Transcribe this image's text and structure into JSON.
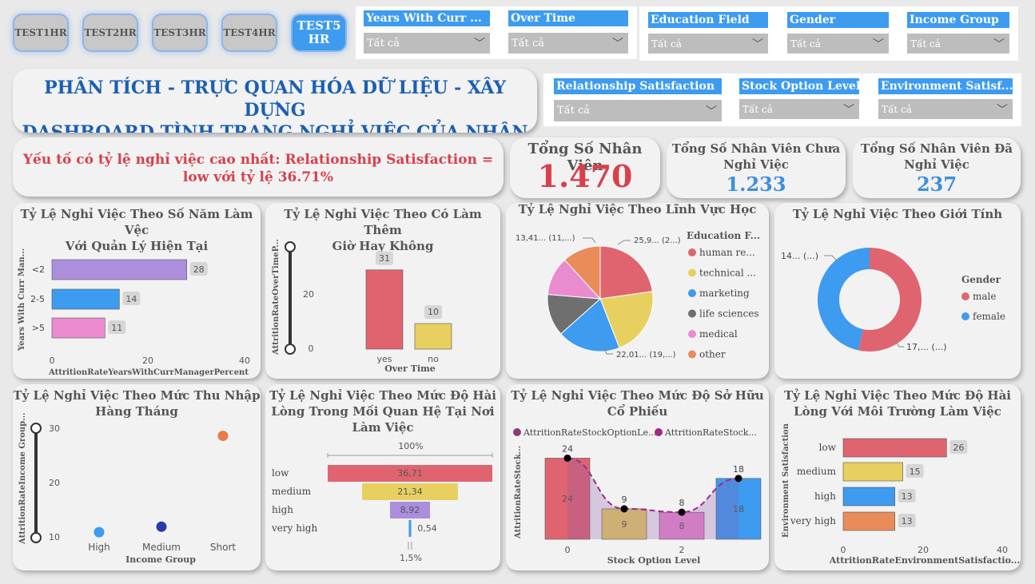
{
  "nav": {
    "tabs": [
      {
        "label": "TEST1HR"
      },
      {
        "label": "TEST2HR"
      },
      {
        "label": "TEST3HR"
      },
      {
        "label": "TEST4HR"
      },
      {
        "label": "TEST5\nHR",
        "active": true
      }
    ]
  },
  "slicers": {
    "years_with_curr": {
      "label": "Years With Curr ...",
      "value": "Tất cả"
    },
    "over_time": {
      "label": "Over Time",
      "value": "Tất cả"
    },
    "education_field": {
      "label": "Education Field",
      "value": "Tất cả"
    },
    "gender": {
      "label": "Gender",
      "value": "Tất cả"
    },
    "income_group": {
      "label": "Income Group",
      "value": "Tất cả"
    },
    "relationship_satisfaction": {
      "label": "Relationship Satisfaction",
      "value": "Tất cả"
    },
    "stock_option_level": {
      "label": "Stock Option Level",
      "value": "Tất cả"
    },
    "environment_satisfaction": {
      "label": "Environment Satisf...",
      "value": "Tất cả"
    }
  },
  "header": {
    "title_line1": "PHÂN TÍCH - TRỰC QUAN HÓA DỮ LIỆU - XÂY DỰNG",
    "title_line2": "DASHBOARD TÌNH TRẠNG NGHỈ VIỆC CỦA NHÂN VIÊN"
  },
  "insight": {
    "line1": "Yếu tố có tỷ lệ nghỉ việc cao nhất: Relationship Satisfaction =",
    "line2": "low với tỷ lệ 36.71%"
  },
  "kpis": {
    "total": {
      "label": "Tổng Số Nhân Viên",
      "value": "1.470"
    },
    "not_left": {
      "label_line1": "Tổng Số Nhân Viên Chưa",
      "label_line2": "Nghỉ Việc",
      "value": "1.233"
    },
    "left": {
      "label_line1": "Tổng Số Nhân Viên Đã",
      "label_line2": "Nghỉ Việc",
      "value": "237"
    }
  },
  "colors": {
    "accent": "#3d9bf0",
    "red": "#e06470",
    "yellow": "#e8d060",
    "blue": "#3d9bf0",
    "purple": "#ab8fdc",
    "pink": "#ea8bcf",
    "orange": "#ea8b5a",
    "gray": "#6f6f6f"
  },
  "charts": {
    "years_mgr": {
      "title_line1": "Tỷ Lệ Nghỉ Việc Theo Số Năm Làm Vệc",
      "title_line2": "Với Quản Lý Hiện Tại",
      "ylabel": "Years With Curr Man...",
      "xlabel": "AttritionRateYearsWithCurrManagerPercent",
      "xticks": [
        "0",
        "20",
        "40"
      ]
    },
    "overtime": {
      "title_line1": "Tỷ Lệ Nghỉ Việc Theo Có Làm Thêm",
      "title_line2": "Giờ Hay Không",
      "ylabel": "AttritionRateOverTimeP...",
      "xlabel": "Over Time",
      "yticks": [
        "20",
        "0"
      ]
    },
    "education": {
      "title": "Tỷ Lệ Nghỉ Việc Theo Lĩnh Vực Học",
      "legend_title": "Education F...",
      "labels": {
        "top_left": "13,41... (11,...)",
        "top_right": "25,9... (2...)",
        "bottom": "22,01... (19,...)"
      }
    },
    "gender": {
      "title": "Tỷ Lệ Nghỉ Việc Theo Giới Tính",
      "legend_title": "Gender",
      "labels": {
        "female": "14... (...)",
        "male": "17,... (...)"
      }
    },
    "income": {
      "title_line1": "Tỷ Lệ Nghỉ Việc Theo Mức Thu Nhập",
      "title_line2": "Hàng Tháng",
      "ylabel": "AttritionRateIncome Group...",
      "xlabel": "Income Group",
      "yticks": [
        "30",
        "20",
        "10"
      ]
    },
    "relationship": {
      "title_line1": "Tỷ Lệ Nghỉ Việc Theo Mức Độ Hài",
      "title_line2": "Lòng Trong Mối Quan Hệ Tại Nơi",
      "title_line3": "Làm Việc",
      "top_label": "100%",
      "bottom_label": "1,5%"
    },
    "stock": {
      "title_line1": "Tỷ Lệ Nghỉ Việc Theo Mức Độ Sở Hữu",
      "title_line2": "Cổ Phiếu",
      "legend1": "AttritionRateStockOptionLe...",
      "legend2": "AttritionRateStock...",
      "ylabel": "AttritionRateStock...",
      "xlabel": "Stock Option Level",
      "xticks": [
        "0",
        "2"
      ]
    },
    "environment": {
      "title_line1": "Tỷ Lệ Nghỉ Việc Theo Mức Độ Hài",
      "title_line2": "Lòng Với Môi Trường Làm Việc",
      "ylabel": "Environment Satisfaction",
      "xlabel": "AttritionRateEnvironmentSatisfactio...",
      "xticks": [
        "0",
        "20",
        "40"
      ]
    }
  },
  "chart_data": [
    {
      "type": "bar",
      "orientation": "horizontal",
      "categories": [
        "<2",
        "2-5",
        ">5"
      ],
      "values": [
        28,
        14,
        11
      ],
      "xlim": [
        0,
        40
      ]
    },
    {
      "type": "bar",
      "categories": [
        "yes",
        "no"
      ],
      "values": [
        31,
        10
      ]
    },
    {
      "type": "pie",
      "categories": [
        "human re...",
        "technical ...",
        "marketing",
        "life sciences",
        "medical",
        "other"
      ],
      "values": [
        25.9,
        24.2,
        22.01,
        14.7,
        13.5,
        13.41
      ]
    },
    {
      "type": "pie",
      "donut": true,
      "categories": [
        "male",
        "female"
      ],
      "values": [
        17,
        14.8
      ]
    },
    {
      "type": "scatter",
      "categories": [
        "High",
        "Medium",
        "Short"
      ],
      "values": [
        11,
        12,
        28.6
      ],
      "colors": [
        "#3d9bf0",
        "#2a3aa8",
        "#ea7a48"
      ],
      "ylim": [
        10,
        30
      ]
    },
    {
      "type": "bar",
      "subtype": "funnel",
      "categories": [
        "low",
        "medium",
        "high",
        "very high"
      ],
      "values": [
        36.71,
        21.34,
        8.92,
        0.54
      ],
      "value_labels": [
        "36,71",
        "21,34",
        "8,92",
        "0,54"
      ]
    },
    {
      "type": "bar",
      "categories": [
        "0",
        "1",
        "2",
        "3"
      ],
      "values": [
        24,
        9,
        8,
        18
      ],
      "line_values": [
        24,
        9,
        8,
        18
      ]
    },
    {
      "type": "bar",
      "orientation": "horizontal",
      "categories": [
        "low",
        "medium",
        "high",
        "very high"
      ],
      "values": [
        26,
        15,
        13,
        13
      ],
      "xlim": [
        0,
        40
      ]
    }
  ]
}
